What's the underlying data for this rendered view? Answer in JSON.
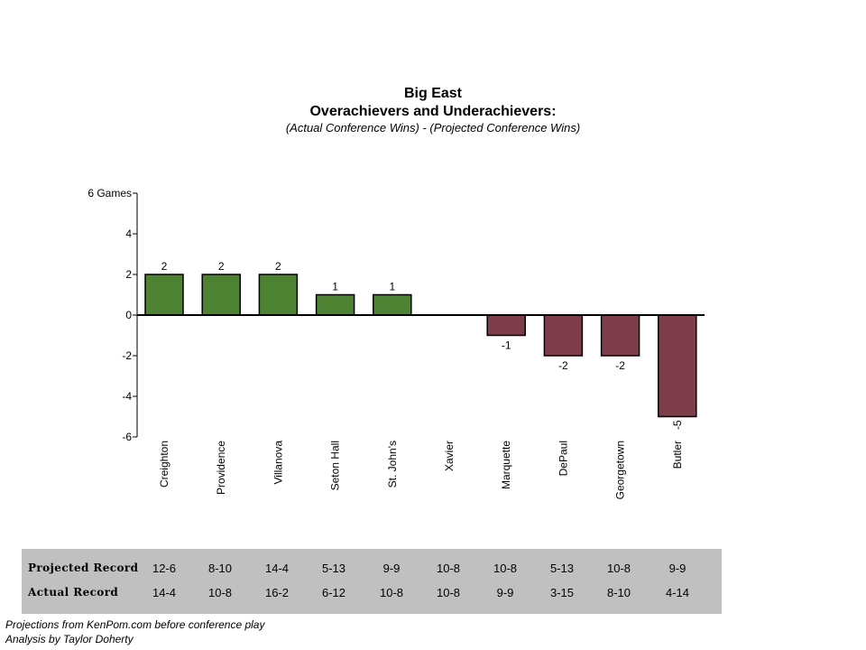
{
  "chart_data": {
    "type": "bar",
    "title": "Big East",
    "subtitle": "Overachievers and Underachievers:",
    "formula": "(Actual Conference Wins) - (Projected Conference Wins)",
    "categories": [
      "Creighton",
      "Providence",
      "Villanova",
      "Seton Hall",
      "St. John's",
      "Xavier",
      "Marquette",
      "DePaul",
      "Georgetown",
      "Butler"
    ],
    "values": [
      2,
      2,
      2,
      1,
      1,
      0,
      -1,
      -2,
      -2,
      -5
    ],
    "ylim": [
      -6,
      6
    ],
    "yticks": [
      6,
      4,
      2,
      0,
      -2,
      -4,
      -6
    ],
    "ytick_labels": [
      "6 Games",
      "4",
      "2",
      "0",
      "-2",
      "-4",
      "-6"
    ],
    "positive_color": "#4e8233",
    "negative_color": "#7e3d4b",
    "grid": false
  },
  "table": {
    "projected_label": "Projected Record",
    "actual_label": "Actual Record",
    "projected": [
      "12-6",
      "8-10",
      "14-4",
      "5-13",
      "9-9",
      "10-8",
      "10-8",
      "5-13",
      "10-8",
      "9-9"
    ],
    "actual": [
      "14-4",
      "10-8",
      "16-2",
      "6-12",
      "10-8",
      "10-8",
      "9-9",
      "3-15",
      "8-10",
      "4-14"
    ]
  },
  "footer": {
    "line1": "Projections from KenPom.com before conference play",
    "line2": "Analysis by Taylor Doherty"
  }
}
